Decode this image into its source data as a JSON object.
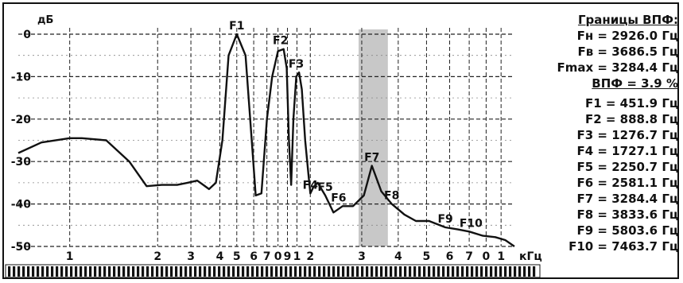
{
  "chart_data": {
    "type": "line",
    "ylabel": "дБ",
    "xunit": "кГц",
    "y_ticks": [
      {
        "v": 0,
        "label": "0"
      },
      {
        "v": -10,
        "label": "-10"
      },
      {
        "v": -20,
        "label": "-20"
      },
      {
        "v": -30,
        "label": "-30"
      },
      {
        "v": -40,
        "label": "-40"
      },
      {
        "v": -50,
        "label": "-50"
      }
    ],
    "ylim": [
      -50,
      5
    ],
    "xlim_khz": [
      0.2,
      10.0
    ],
    "x_scale": "piecewise log (.1–1 and 1–10 decades)",
    "x_ticks": [
      {
        "v": 0.3,
        "label": "1"
      },
      {
        "v": 0.6,
        "label": "2"
      },
      {
        "v": 0.78,
        "label": "3"
      },
      {
        "v": 0.98,
        "label": "4"
      },
      {
        "v": 1.12,
        "label": "5"
      },
      {
        "v": 1.28,
        "label": "6"
      },
      {
        "v": 1.42,
        "label": "7"
      },
      {
        "v": 1.55,
        "label": "0"
      },
      {
        "v": 1.67,
        "label": "9"
      },
      {
        "v": 1.8,
        "label": "1"
      },
      {
        "v": 2.0,
        "label": "2"
      },
      {
        "v": 3.0,
        "label": "3"
      },
      {
        "v": 4.0,
        "label": "4"
      },
      {
        "v": 5.0,
        "label": "5"
      },
      {
        "v": 6.0,
        "label": "6"
      },
      {
        "v": 7.0,
        "label": "7"
      },
      {
        "v": 8.0,
        "label": "0"
      },
      {
        "v": 9.0,
        "label": "1"
      }
    ],
    "highlight_band_khz": [
      2.926,
      3.6865
    ],
    "series": [
      {
        "x": [
          0.2,
          0.24,
          0.3,
          0.33,
          0.4,
          0.48,
          0.55,
          0.62,
          0.7,
          0.76,
          0.82,
          0.86,
          0.9,
          0.95,
          1.0,
          1.05,
          1.12,
          1.2,
          1.26,
          1.3,
          1.36,
          1.42,
          1.48,
          1.55,
          1.62,
          1.66,
          1.69,
          1.72,
          1.75,
          1.79,
          1.83,
          1.87,
          1.92,
          1.97,
          2.0,
          2.05,
          2.12,
          2.25,
          2.4,
          2.58,
          2.8,
          3.05,
          3.25,
          3.5,
          3.8,
          4.2,
          4.6,
          5.1,
          5.8,
          6.4,
          7.0,
          7.8,
          8.6,
          9.3,
          10.0
        ],
        "y": [
          -28,
          -25.5,
          -24.5,
          -24.5,
          -25,
          -30,
          -35.8,
          -35.5,
          -35.5,
          -35,
          -34.5,
          -35.5,
          -36.5,
          -35,
          -25,
          -5,
          0,
          -5,
          -25,
          -38,
          -37.5,
          -20,
          -10,
          -4,
          -3.5,
          -8,
          -25,
          -35.5,
          -20,
          -10,
          -9,
          -13,
          -25,
          -33,
          -37.5,
          -36,
          -35,
          -38,
          -42,
          -40.5,
          -40.5,
          -38,
          -31,
          -37,
          -40,
          -42.5,
          -44,
          -44,
          -45.5,
          -46,
          -46.5,
          -47.5,
          -47.8,
          -48.5,
          -50
        ]
      }
    ],
    "annotations": [
      {
        "text": "F1",
        "x": 1.12,
        "y": 0
      },
      {
        "text": "F2",
        "x": 1.58,
        "y": -3.5
      },
      {
        "text": "F3",
        "x": 1.79,
        "y": -9
      },
      {
        "text": "F4",
        "x": 2.0,
        "y": -37.5
      },
      {
        "text": "F5",
        "x": 2.25,
        "y": -38
      },
      {
        "text": "F6",
        "x": 2.5,
        "y": -40.5
      },
      {
        "text": "F7",
        "x": 3.25,
        "y": -31
      },
      {
        "text": "F8",
        "x": 3.8,
        "y": -40
      },
      {
        "text": "F9",
        "x": 5.8,
        "y": -45.5
      },
      {
        "text": "F10",
        "x": 7.1,
        "y": -46.5
      }
    ]
  },
  "info_panel": {
    "title": "Границы ВПФ:",
    "fn": "Fн = 2926.0 Гц",
    "fv": "Fв = 3686.5 Гц",
    "fmax": "Fmax = 3284.4 Гц",
    "vpf": "ВПФ = 3.9 %",
    "formants": [
      "F1 = 451.9 Гц",
      "F2 = 888.8 Гц",
      "F3 = 1276.7 Гц",
      "F4 = 1727.1 Гц",
      "F5 = 2250.7 Гц",
      "F6 = 2581.1 Гц",
      "F7 = 3284.4 Гц",
      "F8 = 3833.6 Гц",
      "F9 = 5803.6 Гц",
      "F10 = 7463.7 Гц"
    ]
  }
}
